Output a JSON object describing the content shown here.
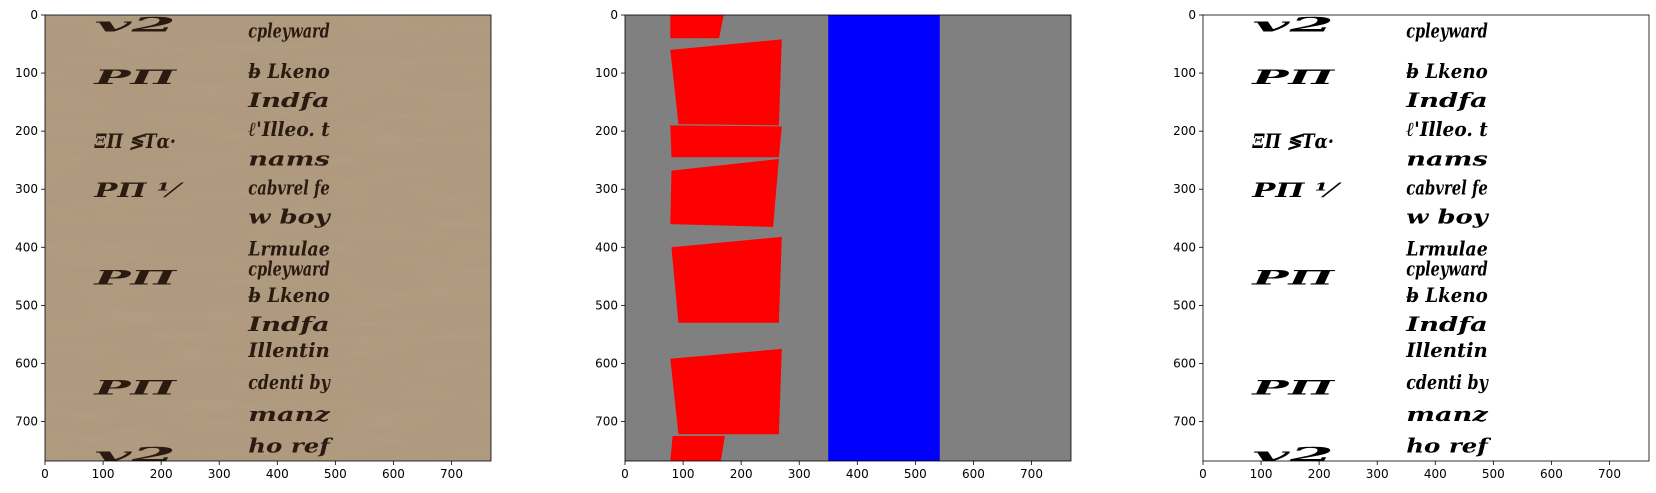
{
  "chart_data": [
    {
      "type": "image",
      "panel": "manuscript-photo",
      "xlim": [
        0,
        768
      ],
      "ylim": [
        768,
        0
      ],
      "xticks": [
        0,
        100,
        200,
        300,
        400,
        500,
        600,
        700
      ],
      "yticks": [
        0,
        100,
        200,
        300,
        400,
        500,
        600,
        700
      ],
      "background_color": "#b09c80",
      "ink_color": "#2a1a10",
      "columns": [
        {
          "x_range": [
            85,
            280
          ],
          "lines": [
            {
              "y": 15,
              "text": "v2"
            },
            {
              "y": 105,
              "text": "PΠ"
            },
            {
              "y": 215,
              "text": "ΞΠ ≶Τα·"
            },
            {
              "y": 300,
              "text": "PΠ ⅟"
            },
            {
              "y": 450,
              "text": "PΠ"
            },
            {
              "y": 640,
              "text": "PΠ"
            },
            {
              "y": 755,
              "text": "v2"
            }
          ]
        },
        {
          "x_range": [
            350,
            545
          ],
          "lines": [
            {
              "y": 25,
              "text": "cpleyward"
            },
            {
              "y": 95,
              "text": "b̶ Lkeno"
            },
            {
              "y": 145,
              "text": "Indfa"
            },
            {
              "y": 195,
              "text": "ℓ'Illeo. t"
            },
            {
              "y": 245,
              "text": "nams"
            },
            {
              "y": 295,
              "text": "cabvrel fe"
            },
            {
              "y": 345,
              "text": "w boy"
            },
            {
              "y": 400,
              "text": "Lrmulae"
            },
            {
              "y": 435,
              "text": "cpleyward"
            },
            {
              "y": 480,
              "text": "b̶ Lkeno"
            },
            {
              "y": 530,
              "text": "Indfa"
            },
            {
              "y": 575,
              "text": "Illentin"
            },
            {
              "y": 630,
              "text": "cdenti by"
            },
            {
              "y": 685,
              "text": "manz"
            },
            {
              "y": 740,
              "text": "ho ref"
            }
          ]
        }
      ]
    },
    {
      "type": "image",
      "panel": "segmentation-mask",
      "xlim": [
        0,
        768
      ],
      "ylim": [
        768,
        0
      ],
      "xticks": [
        0,
        100,
        200,
        300,
        400,
        500,
        600,
        700
      ],
      "yticks": [
        0,
        100,
        200,
        300,
        400,
        500,
        600,
        700
      ],
      "background_color": "#808080",
      "regions": [
        {
          "class": "red",
          "color": "#ff0000",
          "points": [
            [
              78,
              0
            ],
            [
              170,
              0
            ],
            [
              162,
              40
            ],
            [
              78,
              40
            ]
          ]
        },
        {
          "class": "red",
          "color": "#ff0000",
          "points": [
            [
              78,
              60
            ],
            [
              270,
              42
            ],
            [
              265,
              190
            ],
            [
              92,
              188
            ]
          ]
        },
        {
          "class": "red",
          "color": "#ff0000",
          "points": [
            [
              78,
              190
            ],
            [
              270,
              192
            ],
            [
              265,
              245
            ],
            [
              80,
              245
            ]
          ]
        },
        {
          "class": "red",
          "color": "#ff0000",
          "points": [
            [
              80,
              268
            ],
            [
              265,
              248
            ],
            [
              255,
              365
            ],
            [
              78,
              360
            ]
          ]
        },
        {
          "class": "red",
          "color": "#ff0000",
          "points": [
            [
              80,
              400
            ],
            [
              270,
              382
            ],
            [
              265,
              530
            ],
            [
              92,
              530
            ]
          ]
        },
        {
          "class": "red",
          "color": "#ff0000",
          "points": [
            [
              78,
              592
            ],
            [
              270,
              575
            ],
            [
              265,
              722
            ],
            [
              92,
              722
            ]
          ]
        },
        {
          "class": "red",
          "color": "#ff0000",
          "points": [
            [
              82,
              725
            ],
            [
              172,
              725
            ],
            [
              165,
              768
            ],
            [
              78,
              768
            ]
          ]
        },
        {
          "class": "blue",
          "color": "#0000ff",
          "points": [
            [
              350,
              0
            ],
            [
              542,
              0
            ],
            [
              542,
              768
            ],
            [
              350,
              768
            ]
          ]
        }
      ]
    },
    {
      "type": "image",
      "panel": "binarized",
      "xlim": [
        0,
        768
      ],
      "ylim": [
        768,
        0
      ],
      "xticks": [
        0,
        100,
        200,
        300,
        400,
        500,
        600,
        700
      ],
      "yticks": [
        0,
        100,
        200,
        300,
        400,
        500,
        600,
        700
      ],
      "background_color": "#ffffff",
      "ink_color": "#000000"
    }
  ]
}
